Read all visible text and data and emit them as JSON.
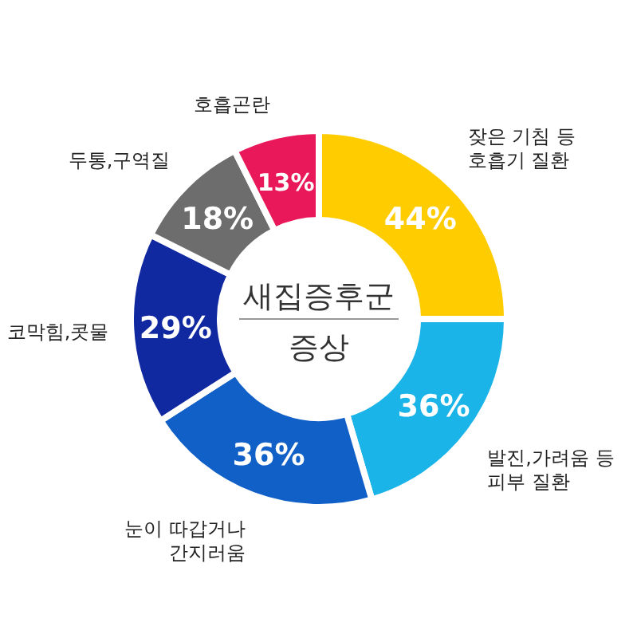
{
  "chart_data": {
    "type": "donut",
    "title": "새집증후군",
    "subtitle": "증상",
    "categories": [
      "잦은 기침 등\n호흡기 질환",
      "발진,가려움 등\n피부 질환",
      "눈이 따갑거나\n간지러움",
      "코막힘,콧물",
      "두통,구역질",
      "호흡곤란"
    ],
    "values": [
      44,
      36,
      36,
      29,
      18,
      13
    ],
    "value_labels": [
      "44%",
      "36%",
      "36%",
      "29%",
      "18%",
      "13%"
    ],
    "colors": [
      "#ffcc00",
      "#1ab4e8",
      "#1060c8",
      "#1028a0",
      "#6d6d6d",
      "#e8185a"
    ]
  }
}
